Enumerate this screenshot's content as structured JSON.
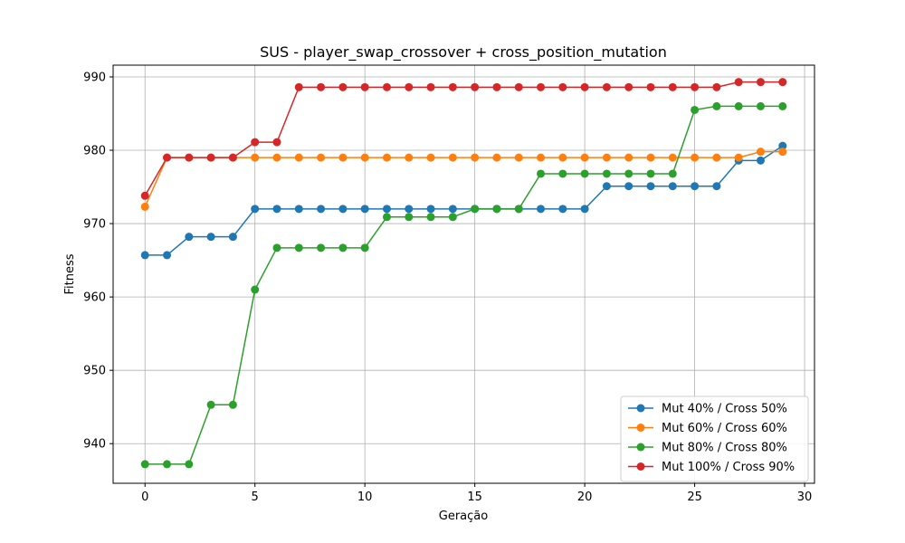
{
  "chart_data": {
    "type": "line",
    "title": "SUS - player_swap_crossover + cross_position_mutation",
    "xlabel": "Geração",
    "ylabel": "Fitness",
    "xlim": [
      -1.45,
      30.45
    ],
    "ylim": [
      934.6,
      991.6
    ],
    "xticks": [
      0,
      5,
      10,
      15,
      20,
      25,
      30
    ],
    "yticks": [
      940,
      950,
      960,
      970,
      980,
      990
    ],
    "grid": true,
    "legend_position": "lower-right",
    "x": [
      0,
      1,
      2,
      3,
      4,
      5,
      6,
      7,
      8,
      9,
      10,
      11,
      12,
      13,
      14,
      15,
      16,
      17,
      18,
      19,
      20,
      21,
      22,
      23,
      24,
      25,
      26,
      27,
      28,
      29
    ],
    "series": [
      {
        "name": "Mut 40% / Cross 50%",
        "color": "#1f77b4",
        "values": [
          965.7,
          965.7,
          968.2,
          968.2,
          968.2,
          972,
          972,
          972,
          972,
          972,
          972,
          972,
          972,
          972,
          972,
          972,
          972,
          972,
          972,
          972,
          972,
          975.1,
          975.1,
          975.1,
          975.1,
          975.1,
          975.1,
          978.6,
          978.6,
          980.6
        ]
      },
      {
        "name": "Mut 60% / Cross 60%",
        "color": "#ff7f0e",
        "values": [
          972.3,
          979,
          979,
          979,
          979,
          979,
          979,
          979,
          979,
          979,
          979,
          979,
          979,
          979,
          979,
          979,
          979,
          979,
          979,
          979,
          979,
          979,
          979,
          979,
          979,
          979,
          979,
          979,
          979.8,
          979.8
        ]
      },
      {
        "name": "Mut 80% / Cross 80%",
        "color": "#2ca02c",
        "values": [
          937.2,
          937.2,
          937.2,
          945.3,
          945.3,
          961,
          966.7,
          966.7,
          966.7,
          966.7,
          966.7,
          970.9,
          970.9,
          970.9,
          970.9,
          972,
          972,
          972,
          976.8,
          976.8,
          976.8,
          976.8,
          976.8,
          976.8,
          976.8,
          985.5,
          986,
          986,
          986,
          986
        ]
      },
      {
        "name": "Mut 100% / Cross 90%",
        "color": "#d62728",
        "values": [
          973.8,
          979,
          979,
          979,
          979,
          981.1,
          981.1,
          988.6,
          988.6,
          988.6,
          988.6,
          988.6,
          988.6,
          988.6,
          988.6,
          988.6,
          988.6,
          988.6,
          988.6,
          988.6,
          988.6,
          988.6,
          988.6,
          988.6,
          988.6,
          988.6,
          988.6,
          989.3,
          989.3,
          989.3
        ]
      }
    ]
  }
}
